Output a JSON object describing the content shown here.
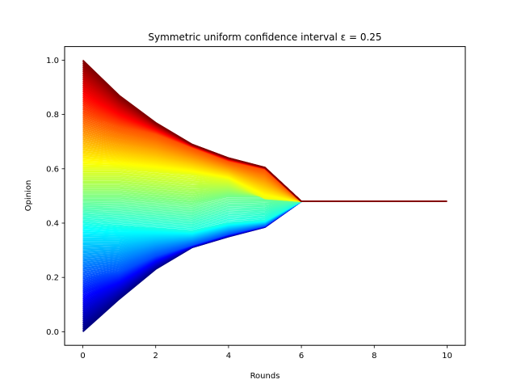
{
  "chart_data": {
    "type": "line",
    "title": "Symmetric uniform confidence interval ε = 0.25",
    "xlabel": "Rounds",
    "ylabel": "Opinion",
    "xlim": [
      -0.5,
      10.5
    ],
    "ylim": [
      -0.05,
      1.05
    ],
    "x_ticks": [
      0,
      2,
      4,
      6,
      8,
      10
    ],
    "y_ticks": [
      0.0,
      0.2,
      0.4,
      0.6,
      0.8,
      1.0
    ],
    "x_tick_labels": [
      "0",
      "2",
      "4",
      "6",
      "8",
      "10"
    ],
    "y_tick_labels": [
      "0.0",
      "0.2",
      "0.4",
      "0.6",
      "0.8",
      "1.0"
    ],
    "grid": false,
    "legend": "none",
    "colormap": "jet",
    "agent_count": 200,
    "rounds": [
      0,
      1,
      2,
      3,
      4,
      5,
      6,
      7,
      8,
      9,
      10
    ],
    "consensus_value": 0.48,
    "consensus_round": 6,
    "series": [
      {
        "values": [
          1.0,
          0.87,
          0.77,
          0.69,
          0.64,
          0.605,
          0.48,
          0.48,
          0.48,
          0.48,
          0.48
        ]
      },
      {
        "values": [
          0.8,
          0.76,
          0.73,
          0.68,
          0.63,
          0.6,
          0.48,
          0.48,
          0.48,
          0.48,
          0.48
        ]
      },
      {
        "values": [
          0.6,
          0.6,
          0.59,
          0.58,
          0.56,
          0.49,
          0.48,
          0.48,
          0.48,
          0.48,
          0.48
        ]
      },
      {
        "values": [
          0.49,
          0.49,
          0.48,
          0.47,
          0.5,
          0.5,
          0.48,
          0.48,
          0.48,
          0.48,
          0.48
        ]
      },
      {
        "values": [
          0.4,
          0.39,
          0.38,
          0.37,
          0.4,
          0.41,
          0.48,
          0.48,
          0.48,
          0.48,
          0.48
        ]
      },
      {
        "values": [
          0.2,
          0.22,
          0.28,
          0.32,
          0.36,
          0.39,
          0.48,
          0.48,
          0.48,
          0.48,
          0.48
        ]
      },
      {
        "values": [
          0.0,
          0.12,
          0.23,
          0.31,
          0.35,
          0.385,
          0.48,
          0.48,
          0.48,
          0.48,
          0.48
        ]
      }
    ]
  }
}
